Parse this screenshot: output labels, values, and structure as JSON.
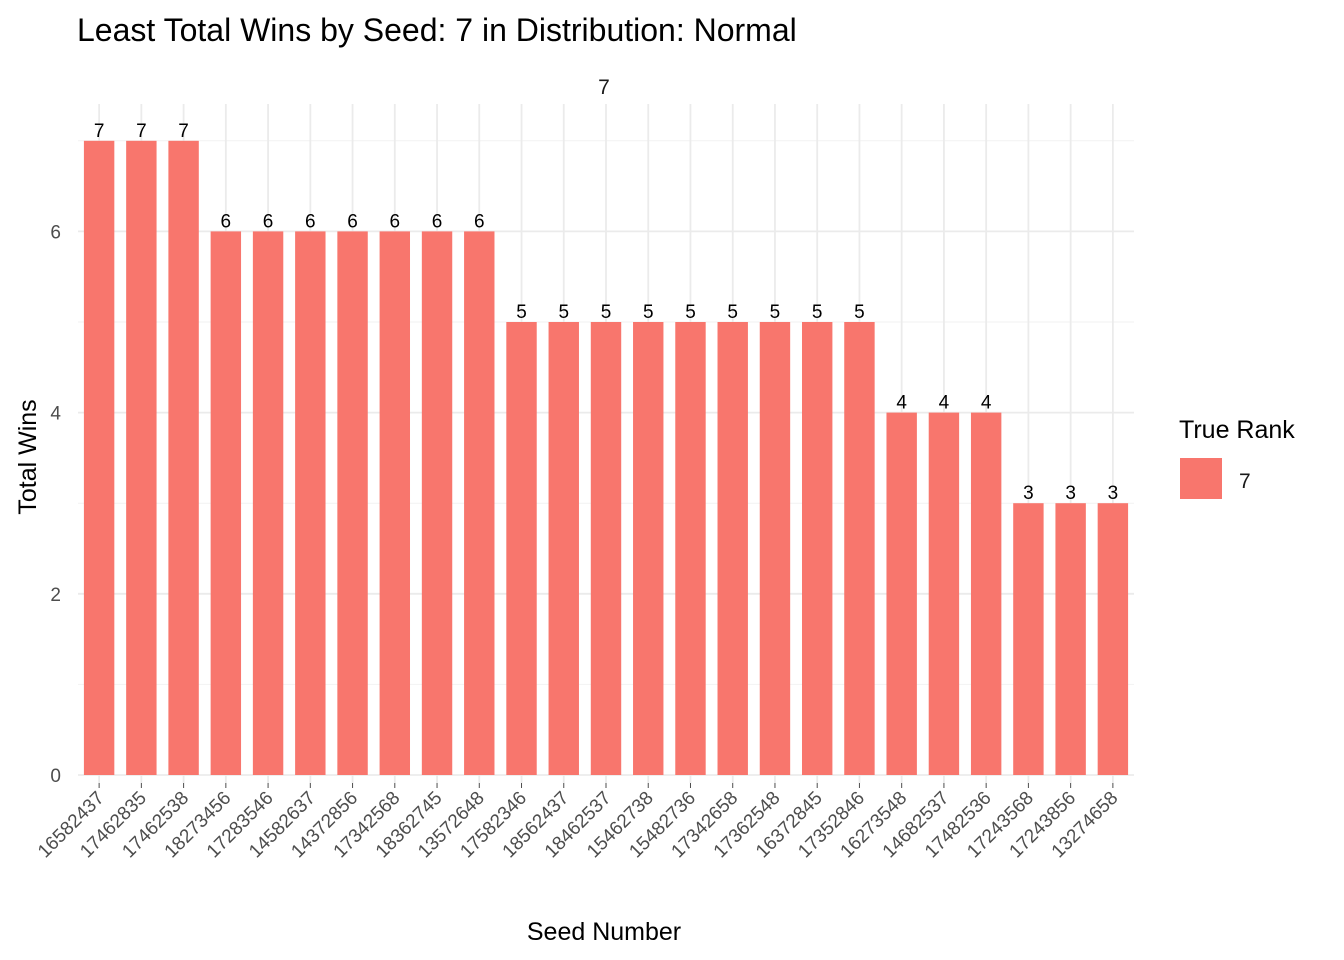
{
  "chart_data": {
    "type": "bar",
    "title": "Least Total Wins by Seed: 7 in Distribution: Normal",
    "facet_label": "7",
    "xlabel": "Seed Number",
    "ylabel": "Total Wins",
    "ylim": [
      0,
      7
    ],
    "yticks": [
      0,
      2,
      4,
      6
    ],
    "grid": true,
    "legend": {
      "title": "True Rank",
      "position": "right",
      "entries": [
        {
          "label": "7",
          "color": "#F8766D"
        }
      ]
    },
    "categories": [
      "16582437",
      "17462835",
      "17462538",
      "18273456",
      "17283546",
      "14582637",
      "14372856",
      "17342568",
      "18362745",
      "13572648",
      "17582346",
      "18562437",
      "18462537",
      "15462738",
      "15482736",
      "17342658",
      "17362548",
      "16372845",
      "17352846",
      "16273548",
      "14682537",
      "17482536",
      "17243568",
      "17243856",
      "13274658"
    ],
    "series": [
      {
        "name": "7",
        "color": "#F8766D",
        "values": [
          7,
          7,
          7,
          6,
          6,
          6,
          6,
          6,
          6,
          6,
          5,
          5,
          5,
          5,
          5,
          5,
          5,
          5,
          5,
          4,
          4,
          4,
          3,
          3,
          3
        ]
      }
    ]
  }
}
